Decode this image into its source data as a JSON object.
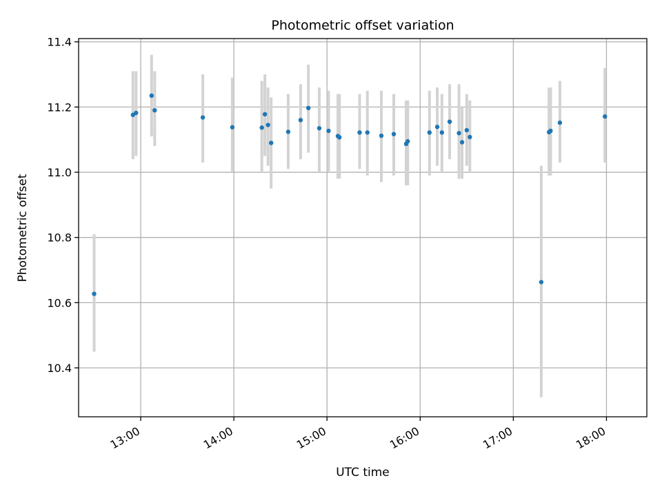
{
  "chart_data": {
    "type": "scatter",
    "title": "Photometric offset variation",
    "xlabel": "UTC time",
    "ylabel": "Photometric offset",
    "x_unit": "time",
    "xlim": [
      "12:20",
      "18:26"
    ],
    "ylim": [
      10.25,
      11.41
    ],
    "x_ticks": [
      "13:00",
      "14:00",
      "15:00",
      "16:00",
      "17:00",
      "18:00"
    ],
    "y_ticks": [
      10.4,
      10.6,
      10.8,
      11.0,
      11.2,
      11.4
    ],
    "y_tick_labels": [
      "10.4",
      "10.6",
      "10.8",
      "11.0",
      "11.2",
      "11.4"
    ],
    "grid": true,
    "colors": {
      "point": "#1f77b4",
      "errorbar": "#d3d3d3",
      "grid": "#b0b0b0"
    },
    "series": [
      {
        "points": [
          {
            "x": "12:30",
            "y": 10.627,
            "lo": 10.45,
            "hi": 10.81
          },
          {
            "x": "12:55",
            "y": 11.176,
            "lo": 11.04,
            "hi": 11.31
          },
          {
            "x": "12:57",
            "y": 11.182,
            "lo": 11.05,
            "hi": 11.31
          },
          {
            "x": "13:07",
            "y": 11.235,
            "lo": 11.11,
            "hi": 11.36
          },
          {
            "x": "13:09",
            "y": 11.19,
            "lo": 11.08,
            "hi": 11.31
          },
          {
            "x": "13:40",
            "y": 11.168,
            "lo": 11.03,
            "hi": 11.3
          },
          {
            "x": "13:59",
            "y": 11.138,
            "lo": 11.0,
            "hi": 11.29
          },
          {
            "x": "14:18",
            "y": 11.137,
            "lo": 11.0,
            "hi": 11.28
          },
          {
            "x": "14:20",
            "y": 11.178,
            "lo": 11.05,
            "hi": 11.3
          },
          {
            "x": "14:22",
            "y": 11.145,
            "lo": 11.02,
            "hi": 11.26
          },
          {
            "x": "14:24",
            "y": 11.09,
            "lo": 10.95,
            "hi": 11.23
          },
          {
            "x": "14:35",
            "y": 11.124,
            "lo": 11.01,
            "hi": 11.24
          },
          {
            "x": "14:43",
            "y": 11.16,
            "lo": 11.04,
            "hi": 11.27
          },
          {
            "x": "14:48",
            "y": 11.197,
            "lo": 11.06,
            "hi": 11.33
          },
          {
            "x": "14:55",
            "y": 11.135,
            "lo": 11.0,
            "hi": 11.26
          },
          {
            "x": "15:01",
            "y": 11.127,
            "lo": 11.0,
            "hi": 11.25
          },
          {
            "x": "15:07",
            "y": 11.111,
            "lo": 10.98,
            "hi": 11.24
          },
          {
            "x": "15:08",
            "y": 11.107,
            "lo": 10.98,
            "hi": 11.24
          },
          {
            "x": "15:21",
            "y": 11.122,
            "lo": 11.01,
            "hi": 11.24
          },
          {
            "x": "15:26",
            "y": 11.122,
            "lo": 10.99,
            "hi": 11.25
          },
          {
            "x": "15:35",
            "y": 11.112,
            "lo": 10.97,
            "hi": 11.25
          },
          {
            "x": "15:43",
            "y": 11.117,
            "lo": 10.99,
            "hi": 11.24
          },
          {
            "x": "15:51",
            "y": 11.087,
            "lo": 10.96,
            "hi": 11.22
          },
          {
            "x": "15:52",
            "y": 11.095,
            "lo": 10.96,
            "hi": 11.22
          },
          {
            "x": "16:06",
            "y": 11.122,
            "lo": 10.99,
            "hi": 11.25
          },
          {
            "x": "16:11",
            "y": 11.139,
            "lo": 11.02,
            "hi": 11.26
          },
          {
            "x": "16:14",
            "y": 11.122,
            "lo": 11.0,
            "hi": 11.24
          },
          {
            "x": "16:19",
            "y": 11.155,
            "lo": 11.04,
            "hi": 11.27
          },
          {
            "x": "16:25",
            "y": 11.12,
            "lo": 10.98,
            "hi": 11.27
          },
          {
            "x": "16:27",
            "y": 11.092,
            "lo": 10.98,
            "hi": 11.2
          },
          {
            "x": "16:30",
            "y": 11.129,
            "lo": 11.02,
            "hi": 11.24
          },
          {
            "x": "16:32",
            "y": 11.108,
            "lo": 11.0,
            "hi": 11.22
          },
          {
            "x": "17:18",
            "y": 10.663,
            "lo": 10.31,
            "hi": 11.02
          },
          {
            "x": "17:23",
            "y": 11.123,
            "lo": 10.99,
            "hi": 11.26
          },
          {
            "x": "17:24",
            "y": 11.127,
            "lo": 10.99,
            "hi": 11.26
          },
          {
            "x": "17:30",
            "y": 11.152,
            "lo": 11.03,
            "hi": 11.28
          },
          {
            "x": "17:59",
            "y": 11.171,
            "lo": 11.03,
            "hi": 11.32
          }
        ]
      }
    ]
  }
}
